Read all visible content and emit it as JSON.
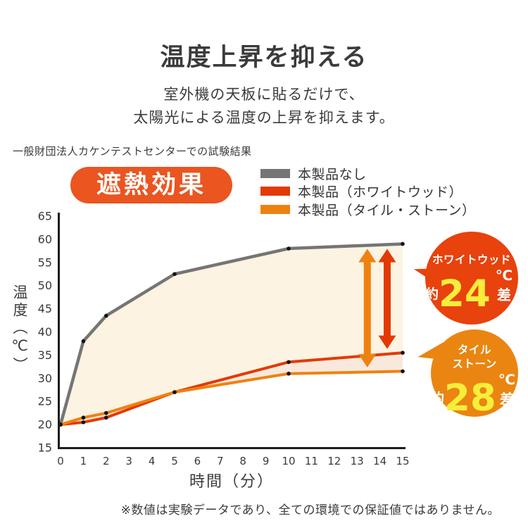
{
  "page": {
    "title": "温度上昇を抑える",
    "subtitle_line1": "室外機の天板に貼るだけで、",
    "subtitle_line2": "太陽光による温度の上昇を抑えます。",
    "test_note": "一般財団法人カケンテストセンターでの試験結果",
    "effect_badge": "遮熱効果",
    "footer_note": "※数値は実験データであり、全ての環境での保証値ではありません。"
  },
  "colors": {
    "text": "#3b3b3b",
    "effect_badge": "#ea5520",
    "series_gray": "#757575",
    "series_red": "#e23a05",
    "series_orange": "#ee8211",
    "ww_badge": "#e8420d",
    "tile_badge": "#ea8511",
    "value_yellow": "#f6ee3b",
    "fill_cream": "#fdf3e2",
    "fill_peach": "#f9e9dc",
    "axis": "#1c1c1c"
  },
  "legend": {
    "items": [
      {
        "label": "本製品なし",
        "color": "#757575"
      },
      {
        "label": "本製品（ホワイトウッド）",
        "color": "#e23a05"
      },
      {
        "label": "本製品（タイル・ストーン）",
        "color": "#ee8211"
      }
    ]
  },
  "chart_data": {
    "type": "line",
    "title": "遮熱効果",
    "x": [
      0,
      1,
      2,
      5,
      10,
      15
    ],
    "series": [
      {
        "name": "本製品なし",
        "color": "#757575",
        "values": [
          20,
          38,
          43.5,
          52.5,
          58,
          59
        ]
      },
      {
        "name": "本製品（ホワイトウッド）",
        "color": "#e23a05",
        "values": [
          20,
          20.5,
          21.5,
          27,
          33.5,
          35.5
        ]
      },
      {
        "name": "本製品（タイル・ストーン）",
        "color": "#ee8211",
        "values": [
          20,
          21.5,
          22.5,
          27,
          31,
          31.5
        ]
      }
    ],
    "xlabel": "時間（分）",
    "ylabel": "温度（℃）",
    "xlim": [
      0,
      15
    ],
    "ylim": [
      15,
      65
    ],
    "y_tick_step": 5,
    "x_ticks": [
      0,
      1,
      2,
      3,
      4,
      5,
      6,
      7,
      8,
      9,
      10,
      11,
      12,
      13,
      14,
      15
    ],
    "grid": false,
    "legend_position": "top-right",
    "fill_between": [
      {
        "upper": 0,
        "lower": 1,
        "color": "#fdf3e2"
      },
      {
        "upper": 1,
        "lower": 2,
        "color": "#f9e9dc"
      }
    ],
    "diff_arrows": [
      {
        "at_x": 13.45,
        "from_series": 0,
        "to_series": 2,
        "color": "#ee8211"
      },
      {
        "at_x": 14.32,
        "from_series": 0,
        "to_series": 1,
        "color": "#e23a05"
      }
    ]
  },
  "annotations": {
    "whitewood_badge": {
      "label": "ホワイトウッド",
      "approx": "約",
      "value": "24",
      "unit": "℃差",
      "color": "#e8420d",
      "value_color": "#f6ee3b"
    },
    "tile_badge": {
      "label_line1": "タイル",
      "label_line2": "ストーン",
      "approx": "約",
      "value": "28",
      "unit": "℃差",
      "color": "#ea8511",
      "value_color": "#f6ee3b"
    }
  }
}
